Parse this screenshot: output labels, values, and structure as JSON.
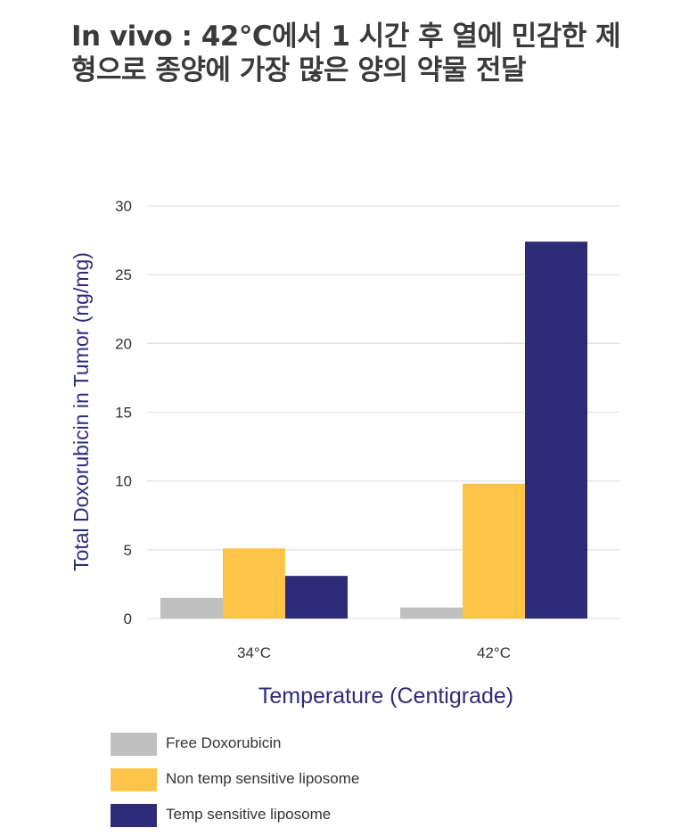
{
  "page": {
    "title": "In vivo : 42°C에서 1 시간 후 열에 민감한 제형으로 종양에 가장 많은 양의 약물 전달"
  },
  "chart_data": {
    "type": "bar",
    "categories": [
      "34°C",
      "42°C"
    ],
    "series": [
      {
        "name": "Free Doxorubicin",
        "values": [
          1.5,
          0.8
        ],
        "color": "#c0c0c0"
      },
      {
        "name": "Non temp sensitive liposome",
        "values": [
          5.1,
          9.8
        ],
        "color": "#fcc54a"
      },
      {
        "name": "Temp sensitive liposome",
        "values": [
          3.1,
          27.4
        ],
        "color": "#2e2b78"
      }
    ],
    "xlabel": "Temperature (Centigrade)",
    "ylabel": "Total Doxorubicin in Tumor (ng/mg)",
    "ylim": [
      0,
      30
    ],
    "yticks": [
      0,
      5,
      10,
      15,
      20,
      25,
      30
    ],
    "grid": true,
    "legend_position": "bottom-left",
    "axis_label_color": "#2e2b78"
  }
}
